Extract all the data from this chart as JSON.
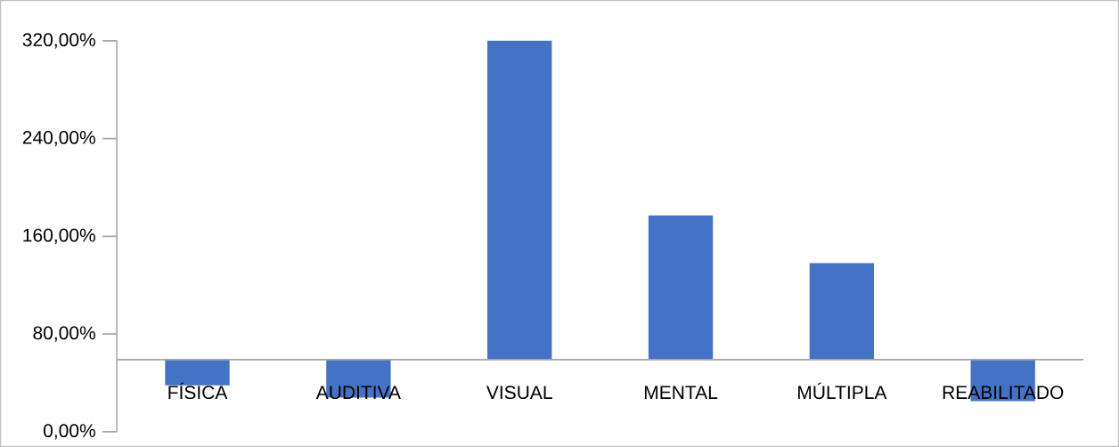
{
  "chart_data": {
    "type": "bar",
    "categories": [
      "FÍSICA",
      "AUDITIVA",
      "VISUAL",
      "MENTAL",
      "MÚLTIPLA",
      "REABILITADO"
    ],
    "base": [
      59,
      59,
      59,
      59,
      59,
      59
    ],
    "values": [
      -21,
      -31,
      261,
      118,
      79,
      -34
    ],
    "color": "#4472c4",
    "ylim": [
      0,
      320
    ],
    "yticks": [
      {
        "value": 0,
        "label": "0,00%"
      },
      {
        "value": 80,
        "label": "80,00%"
      },
      {
        "value": 160,
        "label": "160,00%"
      },
      {
        "value": 240,
        "label": "240,00%"
      },
      {
        "value": 320,
        "label": "320,00%"
      }
    ],
    "grid": false
  }
}
